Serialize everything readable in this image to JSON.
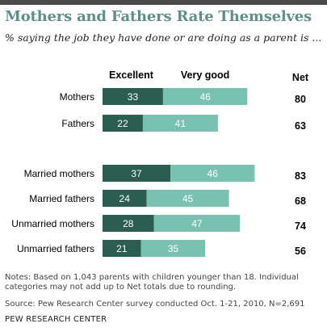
{
  "title": "Mothers and Fathers Rate Themselves",
  "subtitle": "% saying the job they have done or are doing as a parent is ...",
  "notes": "Notes: Based on 1,043 parents with children younger than 18. Individual categories may not add up to Net totals due to rounding.",
  "source": "Source: Pew Research Center survey conducted Oct. 1-21, 2010, N=2,691",
  "organization": "PEW RESEARCH CENTER",
  "colors": {
    "title": "#5f8f8b",
    "excellent": "#2b5d50",
    "very_good": "#79c1b0",
    "bar_text": "#ffffff",
    "top_rule": "#4a4a4a"
  },
  "chart_data": {
    "type": "bar",
    "orientation": "horizontal",
    "stacked": true,
    "categories": [
      "Mothers",
      "Fathers",
      "Married mothers",
      "Married fathers",
      "Unmarried mothers",
      "Unmarried fathers"
    ],
    "series": [
      {
        "name": "Excellent",
        "values": [
          33,
          22,
          37,
          24,
          28,
          21
        ]
      },
      {
        "name": "Very good",
        "values": [
          46,
          41,
          46,
          45,
          47,
          35
        ]
      }
    ],
    "net_label": "Net",
    "net": [
      80,
      63,
      83,
      68,
      74,
      56
    ],
    "groups": [
      [
        0,
        1
      ],
      [
        2,
        3,
        4,
        5
      ]
    ],
    "grid": false,
    "legend_placement": "top"
  }
}
